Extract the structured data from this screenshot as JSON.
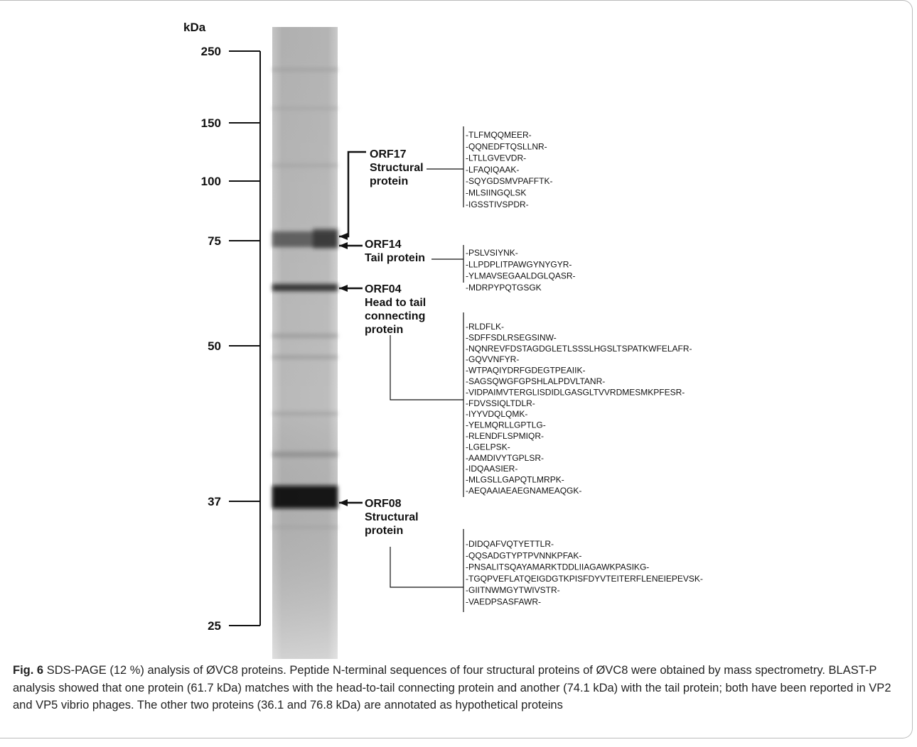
{
  "figure": {
    "marker_unit": "kDa",
    "markers": [
      "250",
      "150",
      "100",
      "75",
      "50",
      "37",
      "25"
    ],
    "proteins": [
      {
        "label": [
          "ORF17",
          "Structural",
          "protein"
        ],
        "peptides": [
          "-TLFMQQMEER-",
          "-QQNEDFTQSLLNR-",
          "-LTLLGVEVDR-",
          "-LFAQIQAAK-",
          "-SQYGDSMVPAFFTK-",
          "-MLSIINGQLSK",
          "-IGSSTIVSPDR-"
        ]
      },
      {
        "label": [
          "ORF14",
          "Tail protein"
        ],
        "peptides": [
          "-PSLVSIYNK-",
          "-LLPDPLITPAWGYNYGYR-",
          "-YLMAVSEGAALDGLQASR-",
          "-MDRPYPQTGSGK"
        ]
      },
      {
        "label": [
          "ORF04",
          "Head to tail",
          "connecting",
          "protein"
        ],
        "peptides": [
          "-RLDFLK-",
          "-SDFFSDLRSEGSINW-",
          "-NQNREVFDSTAGDGLETLSSSLHGSLTSPATKWFELAFR-",
          "-GQVVNFYR-",
          "-WTPAQIYDRFGDEGTPEAIIK-",
          "-SAGSQWGFGPSHLALPDVLTANR-",
          "-VIDPAIMVTERGLISDIDLGASGLTVVRDMESMKPFESR-",
          "-FDVSSIQLTDLR-",
          "-IYYVDQLQMK-",
          "-YELMQRLLGPTLG-",
          "-RLENDFLSPMIQR-",
          "-LGELPSK-",
          "-AAMDIVYTGPLSR-",
          "-IDQAASIER-",
          "-MLGSLLGAPQTLMRPK-",
          "-AEQAAIAEAEGNAMEAQGK-"
        ]
      },
      {
        "label": [
          "ORF08",
          "Structural",
          "protein"
        ],
        "peptides": [
          "-DIDQAFVQTYETTLR-",
          "-QQSADGTYPTPVNNKPFAK-",
          "-PNSALITSQAYAMARKTDDLIIAGAWKPASIKG-",
          "-TGQPVEFLATQEIGDGTKPISFDYVTEITERFLENEIEPEVSK-",
          "-GIITNWMGYTWIVSTR-",
          "-VAEDPSASFAWR-"
        ]
      }
    ],
    "caption": {
      "label": "Fig. 6",
      "text": "SDS-PAGE (12 %) analysis of ØVC8 proteins. Peptide N-terminal sequences of four structural proteins of ØVC8 were obtained by mass spectrometry. BLAST-P analysis showed that one protein (61.7 kDa) matches with the head-to-tail connecting protein and another (74.1 kDa) with the tail protein; both have been reported in VP2 and VP5 vibrio phages. The other two proteins (36.1 and 76.8 kDa) are annotated as hypothetical proteins"
    }
  }
}
